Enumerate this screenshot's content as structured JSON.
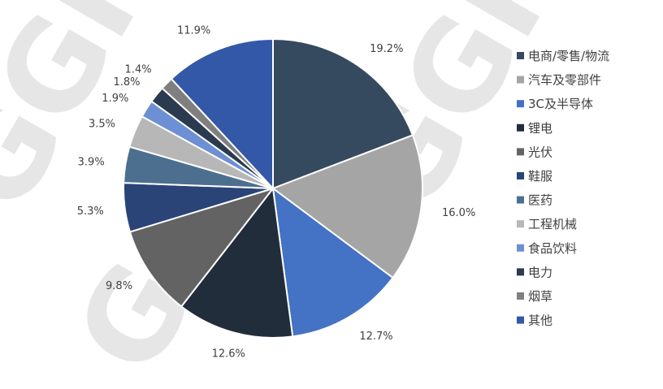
{
  "watermark": {
    "text": "GGII",
    "color": "#e6e6e6"
  },
  "chart_data": {
    "type": "pie",
    "title": "",
    "start_angle_deg": 0,
    "direction": "clockwise",
    "legend_position": "right",
    "categories": [
      "电商/零售/物流",
      "汽车及零部件",
      "3C及半导体",
      "锂电",
      "光伏",
      "鞋服",
      "医药",
      "工程机械",
      "食品饮料",
      "电力",
      "烟草",
      "其他"
    ],
    "values": [
      19.2,
      16.0,
      12.7,
      12.6,
      9.8,
      5.3,
      3.9,
      3.5,
      1.9,
      1.8,
      1.4,
      11.9
    ],
    "labels": [
      "19.2%",
      "16.0%",
      "12.7%",
      "12.6%",
      "9.8%",
      "5.3%",
      "3.9%",
      "3.5%",
      "1.9%",
      "1.8%",
      "1.4%",
      "11.9%"
    ],
    "colors": [
      "#354a5f",
      "#a5a5a5",
      "#4472c4",
      "#222d3c",
      "#636363",
      "#2a4478",
      "#4d6f8f",
      "#b7b7b7",
      "#6d8fd4",
      "#2a3a4f",
      "#7f7f7f",
      "#3458a8"
    ]
  }
}
